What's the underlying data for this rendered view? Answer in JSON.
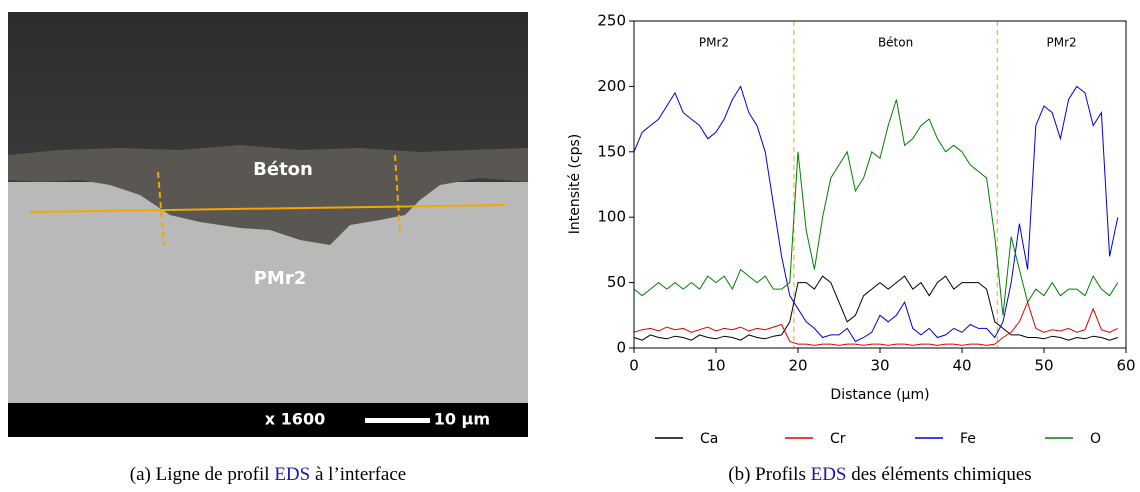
{
  "panel_a": {
    "labels": {
      "concrete": "Béton",
      "metal": "PMr2"
    },
    "magnification": "x 1600",
    "scale_bar": "10 µm",
    "caption": {
      "prefix": "(a) Ligne de profil ",
      "link": "EDS",
      "suffix": " à l’interface"
    }
  },
  "panel_b_caption": {
    "prefix": "(b) Profils ",
    "link": "EDS",
    "suffix": " des éléments chimiques"
  },
  "chart_data": {
    "type": "line",
    "xlabel": "Distance (μm)",
    "ylabel": "Intensité (cps)",
    "xlim": [
      0,
      60
    ],
    "xticks": [
      0,
      10,
      20,
      30,
      40,
      50,
      60
    ],
    "ylim": [
      0,
      250
    ],
    "yticks": [
      0,
      50,
      100,
      150,
      200,
      250
    ],
    "boundaries": [
      19.5,
      44.3
    ],
    "boundary_color": "#f0a800",
    "regions": [
      "PMr2",
      "Béton",
      "PMr2"
    ],
    "x": [
      0,
      1,
      2,
      3,
      4,
      5,
      6,
      7,
      8,
      9,
      10,
      11,
      12,
      13,
      14,
      15,
      16,
      17,
      18,
      19,
      20,
      21,
      22,
      23,
      24,
      25,
      26,
      27,
      28,
      29,
      30,
      31,
      32,
      33,
      34,
      35,
      36,
      37,
      38,
      39,
      40,
      41,
      42,
      43,
      44,
      45,
      46,
      47,
      48,
      49,
      50,
      51,
      52,
      53,
      54,
      55,
      56,
      57,
      58,
      59
    ],
    "series": [
      {
        "name": "Ca",
        "color": "#000000",
        "values": [
          8,
          6,
          10,
          8,
          7,
          9,
          8,
          6,
          10,
          8,
          7,
          9,
          8,
          6,
          10,
          8,
          7,
          9,
          10,
          20,
          50,
          50,
          45,
          55,
          50,
          35,
          20,
          25,
          40,
          45,
          50,
          45,
          50,
          55,
          45,
          50,
          40,
          50,
          55,
          45,
          50,
          50,
          50,
          45,
          20,
          15,
          10,
          10,
          8,
          8,
          7,
          9,
          8,
          6,
          8,
          7,
          9,
          8,
          6,
          8
        ]
      },
      {
        "name": "Cr",
        "color": "#e00000",
        "values": [
          12,
          14,
          15,
          13,
          16,
          14,
          15,
          12,
          14,
          16,
          13,
          15,
          14,
          16,
          13,
          15,
          14,
          16,
          18,
          5,
          3,
          3,
          2,
          3,
          3,
          2,
          3,
          3,
          2,
          3,
          3,
          2,
          3,
          3,
          2,
          3,
          3,
          2,
          3,
          3,
          2,
          3,
          3,
          2,
          3,
          8,
          12,
          20,
          35,
          15,
          12,
          14,
          13,
          15,
          12,
          14,
          30,
          14,
          12,
          15
        ]
      },
      {
        "name": "Fe",
        "color": "#0000e0",
        "values": [
          150,
          165,
          170,
          175,
          185,
          195,
          180,
          175,
          170,
          160,
          165,
          175,
          190,
          200,
          180,
          170,
          150,
          110,
          70,
          40,
          30,
          20,
          15,
          8,
          10,
          10,
          15,
          5,
          8,
          12,
          25,
          20,
          25,
          35,
          15,
          10,
          15,
          8,
          10,
          15,
          12,
          18,
          15,
          15,
          8,
          20,
          50,
          95,
          60,
          170,
          185,
          180,
          160,
          190,
          200,
          195,
          170,
          180,
          70,
          100
        ]
      },
      {
        "name": "O",
        "color": "#008000",
        "values": [
          45,
          40,
          45,
          50,
          45,
          50,
          45,
          50,
          45,
          55,
          50,
          55,
          45,
          60,
          55,
          50,
          55,
          45,
          45,
          50,
          150,
          90,
          60,
          100,
          130,
          140,
          150,
          120,
          130,
          150,
          145,
          170,
          190,
          155,
          160,
          170,
          175,
          160,
          150,
          155,
          150,
          140,
          135,
          130,
          85,
          25,
          85,
          60,
          35,
          45,
          40,
          50,
          40,
          45,
          45,
          40,
          55,
          45,
          40,
          50
        ]
      }
    ]
  }
}
